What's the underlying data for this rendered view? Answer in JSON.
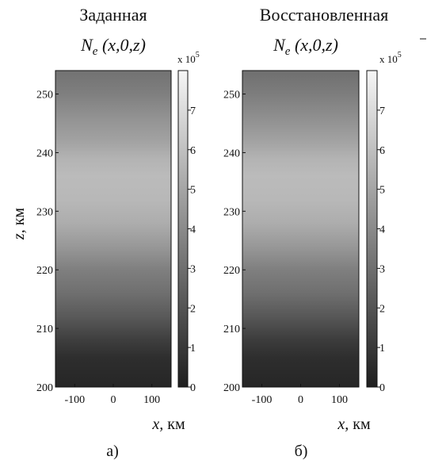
{
  "chart_data": [
    {
      "type": "heatmap",
      "title": "Заданная",
      "subtitle": "N_e (x,0,z)",
      "xlabel": "x, км",
      "ylabel": "z, км",
      "panel_label": "а)",
      "x_ticks": [
        -100,
        0,
        100
      ],
      "y_ticks": [
        200,
        210,
        220,
        230,
        240,
        250
      ],
      "xlim": [
        -150,
        150
      ],
      "ylim": [
        200,
        254
      ],
      "colorbar": {
        "ticks": [
          0,
          1,
          2,
          3,
          4,
          5,
          6,
          7
        ],
        "multiplier": "x 10",
        "exponent": "5",
        "range": [
          0,
          8
        ],
        "colormap": "gray"
      },
      "z_profile": [
        {
          "z": 200,
          "value": 0.3
        },
        {
          "z": 205,
          "value": 0.6
        },
        {
          "z": 208,
          "value": 1.2
        },
        {
          "z": 212,
          "value": 2.2
        },
        {
          "z": 216,
          "value": 3.0
        },
        {
          "z": 220,
          "value": 3.6
        },
        {
          "z": 224,
          "value": 4.5
        },
        {
          "z": 228,
          "value": 5.3
        },
        {
          "z": 232,
          "value": 5.7
        },
        {
          "z": 236,
          "value": 5.8
        },
        {
          "z": 239,
          "value": 5.5
        },
        {
          "z": 242,
          "value": 4.9
        },
        {
          "z": 246,
          "value": 4.3
        },
        {
          "z": 250,
          "value": 3.6
        },
        {
          "z": 254,
          "value": 3.1
        }
      ]
    },
    {
      "type": "heatmap",
      "title": "Восстановленная",
      "subtitle": "N_e (x,0,z)",
      "xlabel": "x, км",
      "ylabel": "",
      "panel_label": "б)",
      "x_ticks": [
        -100,
        0,
        100
      ],
      "y_ticks": [
        200,
        210,
        220,
        230,
        240,
        250
      ],
      "xlim": [
        -150,
        150
      ],
      "ylim": [
        200,
        254
      ],
      "colorbar": {
        "ticks": [
          0,
          1,
          2,
          3,
          4,
          5,
          6,
          7
        ],
        "multiplier": "x 10",
        "exponent": "5",
        "range": [
          0,
          8
        ],
        "colormap": "gray"
      },
      "z_profile": [
        {
          "z": 200,
          "value": 0.3
        },
        {
          "z": 205,
          "value": 0.6
        },
        {
          "z": 208,
          "value": 1.1
        },
        {
          "z": 212,
          "value": 2.1
        },
        {
          "z": 216,
          "value": 3.0
        },
        {
          "z": 220,
          "value": 3.6
        },
        {
          "z": 224,
          "value": 4.5
        },
        {
          "z": 228,
          "value": 5.3
        },
        {
          "z": 232,
          "value": 5.7
        },
        {
          "z": 236,
          "value": 5.8
        },
        {
          "z": 239,
          "value": 5.5
        },
        {
          "z": 242,
          "value": 4.9
        },
        {
          "z": 246,
          "value": 4.2
        },
        {
          "z": 250,
          "value": 3.5
        },
        {
          "z": 254,
          "value": 3.0
        }
      ]
    }
  ]
}
